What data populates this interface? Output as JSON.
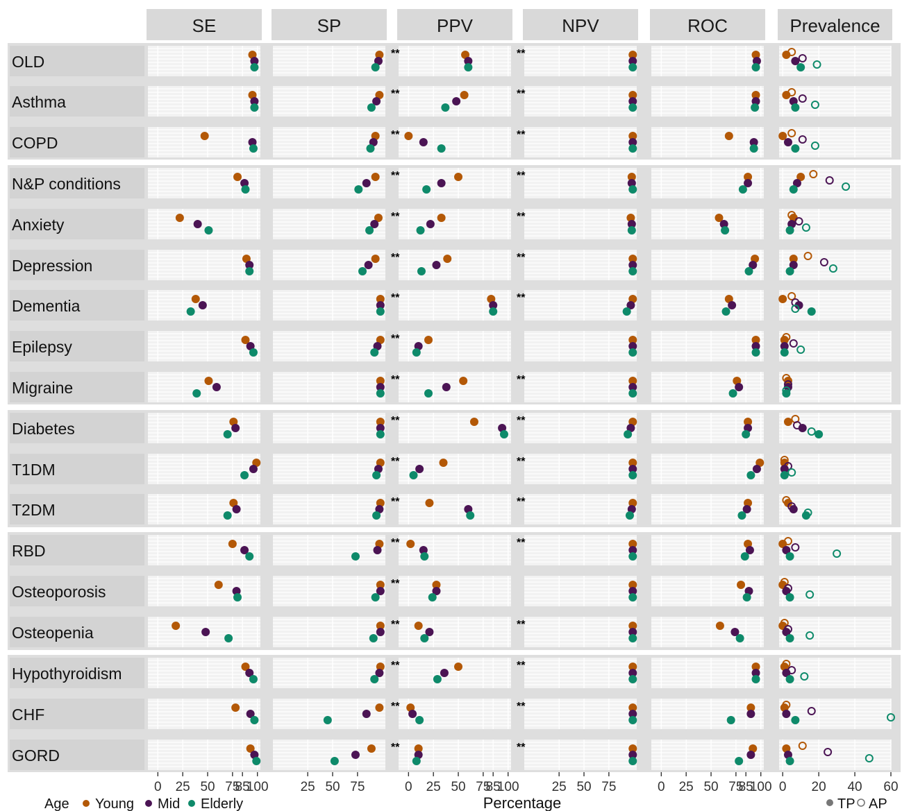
{
  "chart_data": {
    "type": "scatter",
    "xlabel": "Percentage",
    "metrics": [
      {
        "label": "SE"
      },
      {
        "label": "SP"
      },
      {
        "label": "PPV"
      },
      {
        "label": "NPV"
      },
      {
        "label": "ROC"
      },
      {
        "label": "Prevalence"
      }
    ],
    "ticks": [
      {
        "values": [
          0,
          25,
          50,
          75,
          85,
          100
        ],
        "labels": [
          "0",
          "25",
          "50",
          "75",
          "85",
          "100"
        ]
      },
      {
        "values": [
          25,
          50,
          75
        ],
        "labels": [
          "25",
          "50",
          "75"
        ]
      },
      {
        "values": [
          0,
          25,
          50,
          75,
          85,
          100
        ],
        "labels": [
          "0",
          "25",
          "50",
          "75",
          "85",
          "100"
        ]
      },
      {
        "values": [
          25,
          50,
          75
        ],
        "labels": [
          "25",
          "50",
          "75"
        ]
      },
      {
        "values": [
          0,
          25,
          50,
          75,
          85,
          100
        ],
        "labels": [
          "0",
          "25",
          "50",
          "75",
          "85",
          "100"
        ]
      },
      {
        "values": [
          0,
          20,
          40,
          60
        ],
        "labels": [
          "0",
          "20",
          "40",
          "60"
        ]
      }
    ],
    "groups": [
      [
        "OLD",
        "Asthma",
        "COPD"
      ],
      [
        "N&P conditions",
        "Anxiety",
        "Depression",
        "Dementia",
        "Epilepsy",
        "Migraine"
      ],
      [
        "Diabetes",
        "T1DM",
        "T2DM"
      ],
      [
        "RBD",
        "Osteoporosis",
        "Osteopenia"
      ],
      [
        "Hypothyroidism",
        "CHF",
        "GORD"
      ]
    ],
    "sig_marker": "**",
    "sig": {
      "PPV": [
        1,
        1,
        1,
        1,
        1,
        1,
        1,
        1,
        1,
        1,
        1,
        1,
        1,
        1,
        1,
        1,
        1,
        1
      ],
      "NPV": [
        1,
        1,
        1,
        1,
        1,
        1,
        1,
        0,
        1,
        1,
        1,
        1,
        1,
        0,
        1,
        1,
        1,
        1
      ]
    },
    "legend": {
      "title": "Age",
      "items": [
        {
          "name": "Young",
          "color": "#B35806"
        },
        {
          "name": "Mid",
          "color": "#4B1454"
        },
        {
          "name": "Elderly",
          "color": "#0E8A6A"
        }
      ],
      "shape_items": [
        {
          "name": "TP",
          "shape": "filled"
        },
        {
          "name": "AP",
          "shape": "open"
        }
      ]
    },
    "rows": [
      {
        "name": "OLD",
        "SE": [
          95,
          97,
          97
        ],
        "SP": [
          97,
          96,
          93
        ],
        "PPV": [
          57,
          60,
          60
        ],
        "NPV": [
          99,
          99,
          99
        ],
        "ROC": [
          95,
          96,
          95
        ],
        "TP": [
          2,
          7,
          10
        ],
        "AP": [
          5,
          11,
          19
        ]
      },
      {
        "name": "Asthma",
        "SE": [
          95,
          97,
          97
        ],
        "SP": [
          97,
          94,
          89
        ],
        "PPV": [
          56,
          48,
          37
        ],
        "NPV": [
          99,
          99,
          99
        ],
        "ROC": [
          95,
          95,
          94
        ],
        "TP": [
          2,
          6,
          7
        ],
        "AP": [
          5,
          11,
          18
        ]
      },
      {
        "name": "COPD",
        "SE": [
          47,
          95,
          96
        ],
        "SP": [
          93,
          91,
          88
        ],
        "PPV": [
          0,
          15,
          33
        ],
        "NPV": [
          99,
          99,
          99
        ],
        "ROC": [
          68,
          93,
          93
        ],
        "TP": [
          0,
          3,
          7
        ],
        "AP": [
          5,
          11,
          18
        ]
      },
      {
        "name": "N&P conditions",
        "SE": [
          80,
          87,
          88
        ],
        "SP": [
          93,
          84,
          76
        ],
        "PPV": [
          50,
          33,
          18
        ],
        "NPV": [
          98,
          98,
          99
        ],
        "ROC": [
          87,
          87,
          82
        ],
        "TP": [
          10,
          8,
          6
        ],
        "AP": [
          17,
          26,
          35
        ]
      },
      {
        "name": "Anxiety",
        "SE": [
          22,
          40,
          51
        ],
        "SP": [
          96,
          92,
          87
        ],
        "PPV": [
          33,
          22,
          12
        ],
        "NPV": [
          97,
          98,
          98
        ],
        "ROC": [
          58,
          63,
          64
        ],
        "TP": [
          6,
          5,
          4
        ],
        "AP": [
          5,
          9,
          13
        ]
      },
      {
        "name": "Depression",
        "SE": [
          89,
          92,
          92
        ],
        "SP": [
          93,
          86,
          80
        ],
        "PPV": [
          39,
          28,
          13
        ],
        "NPV": [
          99,
          99,
          99
        ],
        "ROC": [
          94,
          92,
          88
        ],
        "TP": [
          6,
          6,
          4
        ],
        "AP": [
          14,
          23,
          28
        ]
      },
      {
        "name": "Dementia",
        "SE": [
          38,
          45,
          33
        ],
        "SP": [
          98,
          98,
          98
        ],
        "PPV": [
          83,
          85,
          85
        ],
        "NPV": [
          99,
          97,
          93
        ],
        "ROC": [
          68,
          71,
          65
        ],
        "TP": [
          0,
          9,
          16
        ],
        "AP": [
          5,
          7,
          7
        ]
      },
      {
        "name": "Epilepsy",
        "SE": [
          88,
          93,
          96
        ],
        "SP": [
          98,
          95,
          92
        ],
        "PPV": [
          20,
          10,
          8
        ],
        "NPV": [
          99,
          99,
          99
        ],
        "ROC": [
          95,
          95,
          95
        ],
        "TP": [
          1,
          1,
          1
        ],
        "AP": [
          2,
          6,
          10
        ]
      },
      {
        "name": "Migraine",
        "SE": [
          51,
          59,
          39
        ],
        "SP": [
          98,
          98,
          98
        ],
        "PPV": [
          55,
          38,
          20
        ],
        "NPV": [
          99,
          99,
          99
        ],
        "ROC": [
          76,
          78,
          72
        ],
        "TP": [
          3,
          3,
          2
        ],
        "AP": [
          2,
          3,
          2
        ]
      },
      {
        "name": "Diabetes",
        "SE": [
          76,
          78,
          70
        ],
        "SP": [
          98,
          98,
          98
        ],
        "PPV": [
          66,
          94,
          96
        ],
        "NPV": [
          99,
          97,
          94
        ],
        "ROC": [
          87,
          87,
          85
        ],
        "TP": [
          3,
          11,
          20
        ],
        "AP": [
          7,
          8,
          16
        ]
      },
      {
        "name": "T1DM",
        "SE": [
          99,
          96,
          87
        ],
        "SP": [
          98,
          96,
          94
        ],
        "PPV": [
          35,
          11,
          5
        ],
        "NPV": [
          99,
          99,
          99
        ],
        "ROC": [
          99,
          96,
          90
        ],
        "TP": [
          1,
          1,
          1
        ],
        "AP": [
          1,
          3,
          5
        ]
      },
      {
        "name": "T2DM",
        "SE": [
          76,
          79,
          70
        ],
        "SP": [
          98,
          97,
          94
        ],
        "PPV": [
          21,
          60,
          62
        ],
        "NPV": [
          99,
          98,
          96
        ],
        "ROC": [
          87,
          86,
          81
        ],
        "TP": [
          3,
          6,
          13
        ],
        "AP": [
          2,
          5,
          14
        ]
      },
      {
        "name": "RBD",
        "SE": [
          75,
          87,
          92
        ],
        "SP": [
          97,
          95,
          73
        ],
        "PPV": [
          2,
          15,
          16
        ],
        "NPV": [
          99,
          99,
          99
        ],
        "ROC": [
          87,
          89,
          84
        ],
        "TP": [
          0,
          2,
          4
        ],
        "AP": [
          3,
          7,
          30
        ]
      },
      {
        "name": "Osteoporosis",
        "SE": [
          61,
          79,
          80
        ],
        "SP": [
          98,
          98,
          93
        ],
        "PPV": [
          28,
          28,
          24
        ],
        "NPV": [
          99,
          99,
          99
        ],
        "ROC": [
          80,
          88,
          86
        ],
        "TP": [
          0,
          2,
          4
        ],
        "AP": [
          1,
          3,
          15
        ]
      },
      {
        "name": "Osteopenia",
        "SE": [
          18,
          48,
          71
        ],
        "SP": [
          98,
          98,
          91
        ],
        "PPV": [
          10,
          21,
          16
        ],
        "NPV": [
          99,
          99,
          99
        ],
        "ROC": [
          59,
          74,
          79
        ],
        "TP": [
          0,
          2,
          4
        ],
        "AP": [
          1,
          3,
          15
        ]
      },
      {
        "name": "Hypothyroidism",
        "SE": [
          88,
          92,
          96
        ],
        "SP": [
          98,
          97,
          92
        ],
        "PPV": [
          50,
          36,
          29
        ],
        "NPV": [
          99,
          99,
          99
        ],
        "ROC": [
          95,
          95,
          95
        ],
        "TP": [
          1,
          2,
          4
        ],
        "AP": [
          2,
          5,
          12
        ]
      },
      {
        "name": "CHF",
        "SE": [
          78,
          93,
          97
        ],
        "SP": [
          97,
          84,
          45
        ],
        "PPV": [
          2,
          4,
          11
        ],
        "NPV": [
          99,
          99,
          99
        ],
        "ROC": [
          90,
          90,
          70
        ],
        "TP": [
          1,
          2,
          7
        ],
        "AP": [
          2,
          16,
          60
        ]
      },
      {
        "name": "GORD",
        "SE": [
          93,
          97,
          99
        ],
        "SP": [
          89,
          73,
          52
        ],
        "PPV": [
          10,
          10,
          8
        ],
        "NPV": [
          99,
          99,
          99
        ],
        "ROC": [
          92,
          90,
          78
        ],
        "TP": [
          2,
          3,
          4
        ],
        "AP": [
          11,
          25,
          48
        ]
      }
    ]
  }
}
